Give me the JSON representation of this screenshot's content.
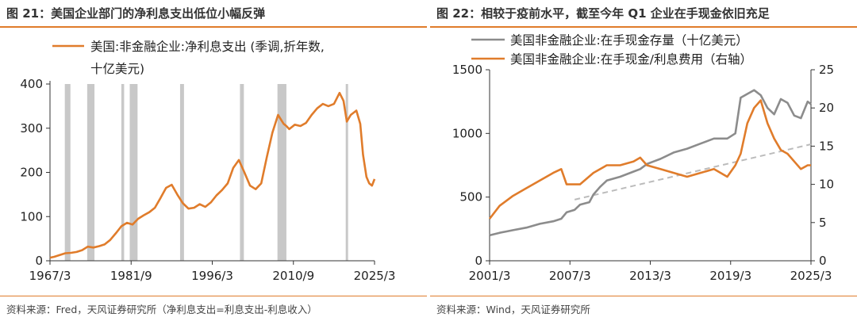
{
  "accent_color": "#e07c2b",
  "left": {
    "title": "图 21：美国企业部门的净利息支出低位小幅反弹",
    "source": "资料来源：Fred，天风证券研究所（净利息支出=利息支出-利息收入）",
    "chart_data": {
      "type": "line",
      "title": "图 21：美国企业部门的净利息支出低位小幅反弹",
      "ylim": [
        0,
        400
      ],
      "xlim": [
        1967.25,
        2025.25
      ],
      "y_ticks": [
        "0",
        "100",
        "200",
        "300",
        "400"
      ],
      "x_ticks": [
        "1967/3",
        "1981/9",
        "1996/3",
        "2010/9",
        "2025/3"
      ],
      "legend": {
        "placement": "top",
        "lines": [
          "美国:非金融企业:净利息支出 (季调,折年数,",
          "十亿美元)"
        ]
      },
      "recession_shading": [
        [
          1969.9,
          1970.9
        ],
        [
          1973.9,
          1975.2
        ],
        [
          1980.0,
          1980.5
        ],
        [
          1981.5,
          1982.9
        ],
        [
          1990.5,
          1991.2
        ],
        [
          2001.2,
          2001.9
        ],
        [
          2007.9,
          2009.5
        ],
        [
          2020.1,
          2020.4
        ]
      ],
      "series": [
        {
          "name": "美国:非金融企业:净利息支出 (季调,折年数,十亿美元)",
          "color": "#e07c2b",
          "x": [
            1967.25,
            1968,
            1969,
            1970,
            1971,
            1972,
            1973,
            1974,
            1975,
            1976,
            1977,
            1978,
            1979,
            1980,
            1981,
            1982,
            1983,
            1984,
            1985,
            1986,
            1987,
            1988,
            1989,
            1990,
            1991,
            1992,
            1993,
            1994,
            1995,
            1996,
            1997,
            1998,
            1999,
            2000,
            2001,
            2002,
            2003,
            2004,
            2005,
            2006,
            2007,
            2008,
            2009,
            2009.5,
            2010,
            2011,
            2012,
            2013,
            2014,
            2015,
            2016,
            2017,
            2018,
            2019,
            2019.7,
            2020.3,
            2021,
            2022,
            2022.7,
            2023.2,
            2023.8,
            2024.3,
            2024.8,
            2025.25
          ],
          "y": [
            7,
            9,
            13,
            17,
            18,
            20,
            24,
            32,
            30,
            33,
            37,
            47,
            62,
            78,
            86,
            82,
            95,
            103,
            110,
            120,
            142,
            165,
            172,
            150,
            130,
            118,
            120,
            128,
            122,
            132,
            148,
            160,
            175,
            210,
            228,
            200,
            170,
            162,
            175,
            235,
            290,
            330,
            310,
            305,
            298,
            308,
            305,
            312,
            330,
            345,
            355,
            350,
            355,
            380,
            362,
            315,
            330,
            340,
            310,
            240,
            190,
            175,
            170,
            185
          ]
        }
      ]
    }
  },
  "right": {
    "title": "图 22：相较于疫前水平，截至今年 Q1 企业在手现金依旧充足",
    "source": "资料来源：Wind，天风证券研究所",
    "chart_data": {
      "type": "line",
      "title": "图 22：相较于疫前水平，截至今年 Q1 企业在手现金依旧充足",
      "ylim": [
        0,
        1500
      ],
      "y2lim": [
        0,
        25
      ],
      "xlim": [
        2001.25,
        2025.25
      ],
      "y_ticks": [
        "0",
        "500",
        "1000",
        "1500"
      ],
      "y2_ticks": [
        "0",
        "5",
        "10",
        "15",
        "20",
        "25"
      ],
      "x_ticks": [
        "2001/3",
        "2007/3",
        "2013/3",
        "2019/3",
        "2025/3"
      ],
      "legend": {
        "placement": "top"
      },
      "trendline": {
        "color": "#bbbbbb",
        "style": "dashed",
        "x": [
          2007.6,
          2025.25
        ],
        "y": [
          480,
          915
        ]
      },
      "series": [
        {
          "name": "美国非金融企业:在手现金存量（十亿美元）",
          "color": "#8c8c8c",
          "axis": "left",
          "x": [
            2001.25,
            2002,
            2003,
            2004,
            2005,
            2006,
            2006.6,
            2007,
            2007.6,
            2008,
            2008.7,
            2009,
            2009.5,
            2010,
            2011,
            2012,
            2012.5,
            2013,
            2013.5,
            2014,
            2015,
            2016,
            2017,
            2018,
            2019,
            2019.6,
            2020,
            2020.5,
            2021,
            2021.5,
            2022,
            2022.5,
            2023,
            2023.5,
            2024,
            2024.5,
            2025,
            2025.25
          ],
          "y": [
            200,
            220,
            240,
            260,
            290,
            310,
            330,
            380,
            400,
            440,
            460,
            520,
            580,
            630,
            660,
            700,
            720,
            760,
            780,
            800,
            850,
            880,
            920,
            960,
            960,
            1000,
            1280,
            1310,
            1340,
            1300,
            1200,
            1150,
            1270,
            1240,
            1140,
            1120,
            1250,
            1230
          ]
        },
        {
          "name": "美国非金融企业:在手现金/利息费用（右轴）",
          "color": "#e07c2b",
          "axis": "right",
          "x": [
            2001.25,
            2002,
            2003,
            2004,
            2005,
            2006,
            2006.6,
            2007,
            2008,
            2009,
            2010,
            2011,
            2012,
            2012.5,
            2013,
            2014,
            2015,
            2016,
            2017,
            2018,
            2019,
            2019.6,
            2020,
            2020.5,
            2021,
            2021.5,
            2022,
            2022.5,
            2023,
            2023.5,
            2024,
            2024.5,
            2025,
            2025.25
          ],
          "y": [
            5.5,
            7.2,
            8.5,
            9.5,
            10.5,
            11.5,
            12.0,
            10.0,
            10.0,
            11.5,
            12.5,
            12.5,
            13.0,
            13.5,
            12.5,
            12.0,
            11.5,
            11.0,
            11.5,
            12.0,
            11.0,
            12.5,
            14.0,
            18.0,
            20.0,
            21.0,
            18.0,
            16.0,
            14.5,
            14.0,
            13.0,
            12.0,
            12.5,
            12.5
          ]
        }
      ]
    }
  }
}
